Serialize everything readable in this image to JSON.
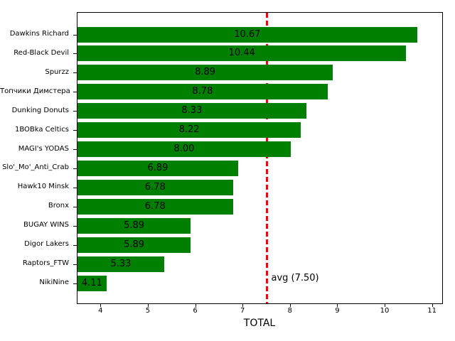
{
  "chart_data": {
    "type": "bar",
    "orientation": "horizontal",
    "title": "",
    "xlabel": "TOTAL",
    "ylabel": "",
    "categories": [
      "Dawkins Richard",
      "Red-Black Devil",
      "Spurzz",
      "Топчики Димстера",
      "Dunking Donuts",
      "1BOBka Celtics",
      "MAGI's YODAS",
      "Slo'_Mo'_Anti_Crab",
      "Hawk10 Minsk",
      "Bronx",
      "BUGAY WINS",
      "Digor Lakers",
      "Raptors_FTW",
      "NikiNine"
    ],
    "values": [
      10.67,
      10.44,
      8.89,
      8.78,
      8.33,
      8.22,
      8.0,
      6.89,
      6.78,
      6.78,
      5.89,
      5.89,
      5.33,
      4.11
    ],
    "value_labels": [
      "10.67",
      "10.44",
      "8.89",
      "8.78",
      "8.33",
      "8.22",
      "8.00",
      "6.89",
      "6.78",
      "6.78",
      "5.89",
      "5.89",
      "5.33",
      "4.11"
    ],
    "bar_color": "#008000",
    "value_label_color": "#000000",
    "xlim": [
      3.5,
      11.23
    ],
    "xticks": [
      4,
      5,
      6,
      7,
      8,
      9,
      10,
      11
    ],
    "grid": false,
    "legend": false,
    "reference_line": {
      "value": 7.5,
      "label": "avg (7.50)",
      "color": "#ff0000",
      "style": "dashed"
    }
  }
}
